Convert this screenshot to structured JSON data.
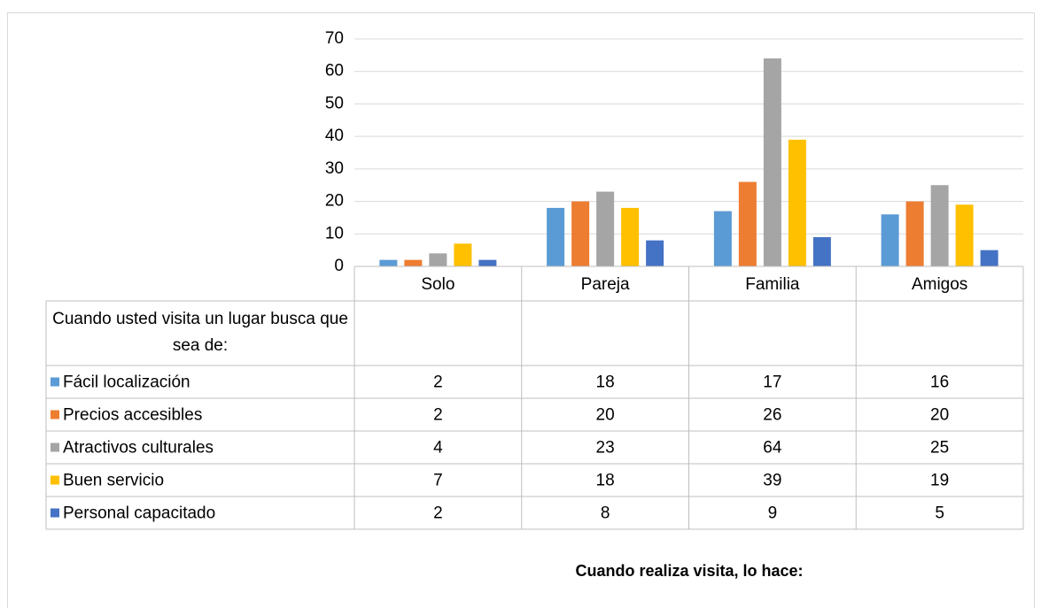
{
  "chart_data": {
    "type": "bar",
    "legend_title": "Cuando usted visita un lugar busca que sea de:",
    "x_label": "Cuando realiza visita, lo hace:",
    "categories": [
      "Solo",
      "Pareja",
      "Familia",
      "Amigos"
    ],
    "series": [
      {
        "name": "Fácil localización",
        "color": "#5b9bd5",
        "values": [
          2,
          18,
          17,
          16
        ]
      },
      {
        "name": "Precios accesibles",
        "color": "#ed7d31",
        "values": [
          2,
          20,
          26,
          20
        ]
      },
      {
        "name": "Atractivos culturales",
        "color": "#a5a5a5",
        "values": [
          4,
          23,
          64,
          25
        ]
      },
      {
        "name": "Buen servicio",
        "color": "#ffc000",
        "values": [
          7,
          18,
          39,
          19
        ]
      },
      {
        "name": "Personal capacitado",
        "color": "#4472c4",
        "values": [
          2,
          8,
          9,
          5
        ]
      }
    ],
    "ylim": [
      0,
      70
    ],
    "yticks": [
      0,
      10,
      20,
      30,
      40,
      50,
      60,
      70
    ],
    "grid": true
  }
}
